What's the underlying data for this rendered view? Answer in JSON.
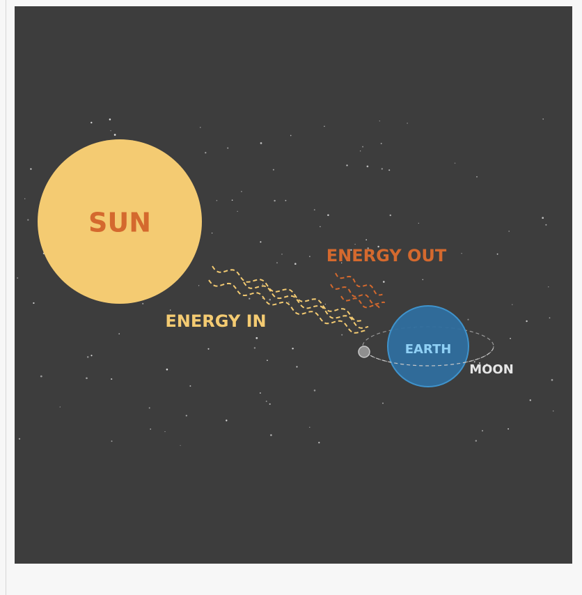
{
  "diagram": {
    "sun": {
      "label": "SUN"
    },
    "energy_in": {
      "label": "ENERGY IN"
    },
    "energy_out": {
      "label": "ENERGY OUT"
    },
    "earth": {
      "label": "EARTH"
    },
    "moon": {
      "label": "MOON"
    }
  }
}
